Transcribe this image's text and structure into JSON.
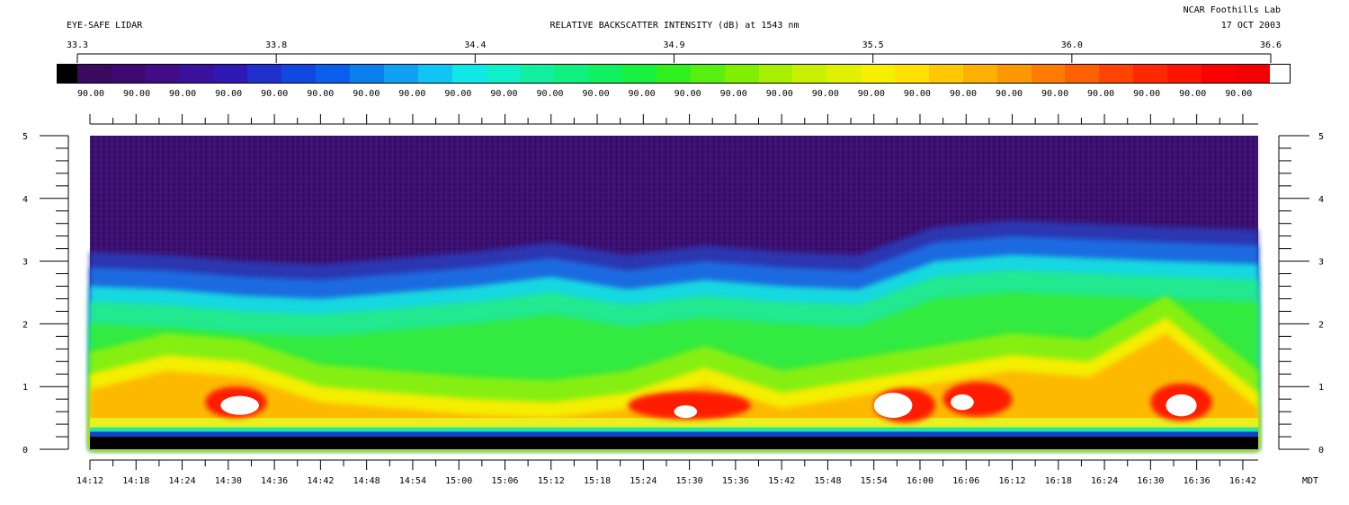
{
  "header": {
    "left_title": "EYE-SAFE LIDAR",
    "center_title": "RELATIVE BACKSCATTER INTENSITY (dB) at 1543 nm",
    "org": "NCAR Foothills Lab",
    "date": "17 OCT 2003"
  },
  "scale": {
    "labels": [
      "33.3",
      "33.8",
      "34.4",
      "34.9",
      "35.5",
      "36.0",
      "36.6"
    ],
    "bin_labels": [
      "90.00",
      "90.00",
      "90.00",
      "90.00",
      "90.00",
      "90.00",
      "90.00",
      "90.00",
      "90.00",
      "90.00",
      "90.00",
      "90.00",
      "90.00",
      "90.00",
      "90.00",
      "90.00",
      "90.00",
      "90.00",
      "90.00",
      "90.00",
      "90.00",
      "90.00",
      "90.00",
      "90.00",
      "90.00",
      "90.00"
    ],
    "colors": [
      "#000000",
      "#3a0a5e",
      "#3e0a72",
      "#400c88",
      "#3a109c",
      "#3018b4",
      "#2030cc",
      "#1048e0",
      "#0a60ec",
      "#0a80f0",
      "#10a0f4",
      "#10c4f4",
      "#10e8e8",
      "#10f0c8",
      "#10f0a0",
      "#10f080",
      "#10f060",
      "#18f040",
      "#30f020",
      "#58f010",
      "#80f000",
      "#a8f000",
      "#c8f000",
      "#e0f000",
      "#f4f000",
      "#ffe000",
      "#ffc800",
      "#ffb000",
      "#ff9800",
      "#ff7c00",
      "#ff6000",
      "#ff4400",
      "#ff2800",
      "#ff1400",
      "#ff0000",
      "#f40000",
      "#ffffff"
    ]
  },
  "chart_data": {
    "type": "heatmap",
    "title": "RELATIVE BACKSCATTER INTENSITY (dB) at 1543 nm",
    "xlabel": "MDT",
    "x_tick_labels": [
      "14:12",
      "14:18",
      "14:24",
      "14:30",
      "14:36",
      "14:42",
      "14:48",
      "14:54",
      "15:00",
      "15:06",
      "15:12",
      "15:18",
      "15:24",
      "15:30",
      "15:36",
      "15:42",
      "15:48",
      "15:54",
      "16:00",
      "16:06",
      "16:12",
      "16:18",
      "16:24",
      "16:30",
      "16:36",
      "16:42"
    ],
    "y_tick_labels": [
      "0",
      "1",
      "2",
      "3",
      "4",
      "5"
    ],
    "ylim": [
      0,
      5
    ],
    "x_range_minutes": [
      0,
      152
    ],
    "boundary_layer_top_km": {
      "x_minutes": [
        0,
        10,
        20,
        30,
        40,
        50,
        60,
        70,
        80,
        90,
        100,
        110,
        120,
        130,
        140,
        152
      ],
      "values": [
        2.6,
        2.55,
        2.45,
        2.4,
        2.5,
        2.6,
        2.75,
        2.55,
        2.7,
        2.6,
        2.55,
        3.0,
        3.1,
        3.05,
        3.0,
        2.95
      ]
    },
    "aerosol_layer_top_km": {
      "x_minutes": [
        0,
        10,
        20,
        30,
        40,
        50,
        60,
        70,
        80,
        90,
        100,
        110,
        120,
        130,
        140,
        152
      ],
      "values": [
        1.2,
        1.5,
        1.4,
        1.0,
        0.9,
        0.8,
        0.75,
        0.9,
        1.3,
        0.9,
        1.1,
        1.3,
        1.5,
        1.4,
        2.1,
        0.9
      ]
    },
    "intense_patches": [
      {
        "x": 15,
        "y": 0.75,
        "w": 8,
        "h": 0.5
      },
      {
        "x": 70,
        "y": 0.7,
        "w": 16,
        "h": 0.45
      },
      {
        "x": 102,
        "y": 0.7,
        "w": 8,
        "h": 0.55
      },
      {
        "x": 111,
        "y": 0.8,
        "w": 9,
        "h": 0.55
      },
      {
        "x": 138,
        "y": 0.75,
        "w": 8,
        "h": 0.6
      }
    ],
    "saturated_patches": [
      {
        "x": 17,
        "y": 0.7,
        "w": 5,
        "h": 0.3
      },
      {
        "x": 76,
        "y": 0.6,
        "w": 3,
        "h": 0.2
      },
      {
        "x": 102,
        "y": 0.7,
        "w": 5,
        "h": 0.4
      },
      {
        "x": 112,
        "y": 0.75,
        "w": 3,
        "h": 0.25
      },
      {
        "x": 140,
        "y": 0.7,
        "w": 4,
        "h": 0.35
      }
    ]
  }
}
